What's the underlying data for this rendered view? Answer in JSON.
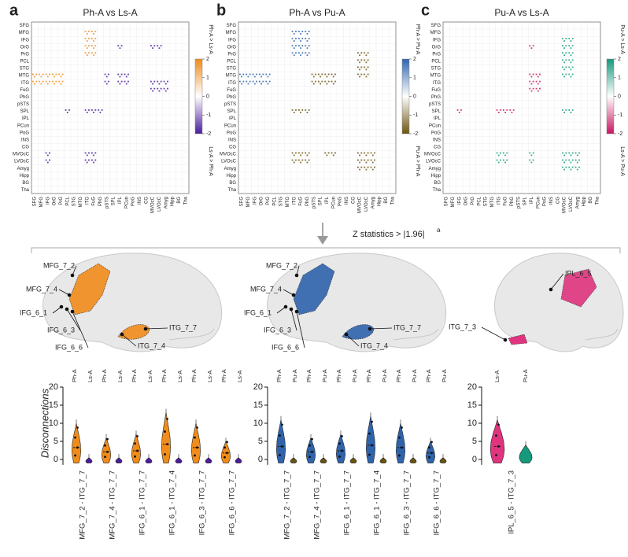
{
  "panels": [
    {
      "letter": "a",
      "title": "Ph-A vs Ls-A",
      "colorbar": {
        "top_label": "Ph-A > Ls-A",
        "bottom_label": "Ls-A > Ph-A",
        "ticks": [
          2,
          1,
          0,
          -1,
          -2
        ],
        "colors": [
          "#f08c1c",
          "#ffffff",
          "#4a1d9c"
        ]
      }
    },
    {
      "letter": "b",
      "title": "Ph-A vs Pu-A",
      "colorbar": {
        "top_label": "Ph-A > Pu-A",
        "bottom_label": "Pu-A > Ph-A",
        "ticks": [
          2,
          1,
          0,
          -1,
          -2
        ],
        "colors": [
          "#2f64ad",
          "#ffffff",
          "#6b5410"
        ]
      }
    },
    {
      "letter": "c",
      "title": "Pu-A vs Ls-A",
      "colorbar": {
        "top_label": "Pu-A > Ls-A",
        "bottom_label": "Ls-A > Pu-A",
        "ticks": [
          2,
          1,
          0,
          -1,
          -2
        ],
        "colors": [
          "#159a7c",
          "#ffffff",
          "#c8155f"
        ]
      }
    }
  ],
  "regions": [
    "SFG",
    "MFG",
    "IFG",
    "OrG",
    "PrG",
    "PCL",
    "STG",
    "MTG",
    "ITG",
    "FuG",
    "PhG",
    "pSTS",
    "SPL",
    "IPL",
    "PCun",
    "PoG",
    "INS",
    "CG",
    "MVOcC",
    "LVOcC",
    "Amyg",
    "Hipp",
    "BG",
    "Tha"
  ],
  "threshold": {
    "label": "Z statistics > |1.96|",
    "note": "a"
  },
  "brains": [
    {
      "labels": [
        "MFG_7_2",
        "MFG_7_4",
        "IFG_6_1",
        "IFG_6_3",
        "IFG_6_6",
        "ITG_7_4",
        "ITG_7_7"
      ]
    },
    {
      "labels": [
        "MFG_7_2",
        "MFG_7_4",
        "IFG_6_1",
        "IFG_6_3",
        "IFG_6_6",
        "ITG_7_4",
        "ITG_7_7"
      ]
    },
    {
      "labels": [
        "IPL_6_5",
        "ITG_7_3"
      ]
    }
  ],
  "violins": {
    "y_label": "Disconnections",
    "yticks": [
      0,
      5,
      10,
      15,
      20
    ],
    "ylim": [
      -1.5,
      20
    ],
    "groups": [
      {
        "headers": [
          "Ph-A",
          "Ls-A"
        ],
        "pairs": [
          "MFG_7_2 - ITG_7_7",
          "MFG_7_4 - ITG_7_7",
          "IFG_6_1 - ITG_7_7",
          "IFG_6_1 - ITG_7_4",
          "IFG_6_3 - ITG_7_7",
          "IFG_6_6 - ITG_7_7"
        ]
      },
      {
        "headers": [
          "Ph-A",
          "Pu-A"
        ],
        "pairs": [
          "MFG_7_2 - ITG_7_7",
          "MFG_7_4 - ITG_7_7",
          "IFG_6_1 - ITG_7_7",
          "IFG_6_1 - ITG_7_4",
          "IFG_6_3 - ITG_7_7",
          "IFG_6_6 - ITG_7_7"
        ]
      },
      {
        "headers": [
          "Ls-A",
          "Pu-A"
        ],
        "pairs": [
          "IPL_6_5 - ITG_7_3"
        ]
      }
    ]
  }
}
